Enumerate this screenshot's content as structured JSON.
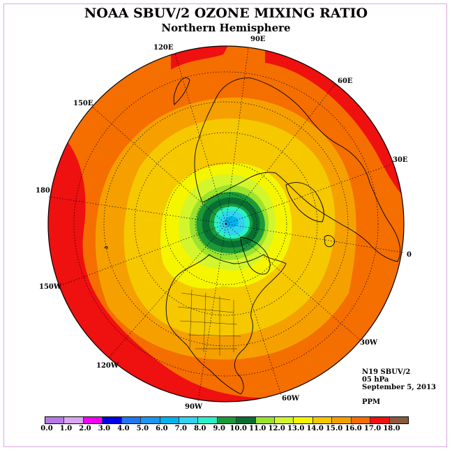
{
  "title": "NOAA SBUV/2 OZONE MIXING RATIO",
  "subtitle": "Northern Hemisphere",
  "longitude_labels": [
    "120E",
    "90E",
    "60E",
    "150E",
    "30E",
    "180",
    "0",
    "150W",
    "30W",
    "120W",
    "60W",
    "90W"
  ],
  "info": {
    "instrument": "N19 SBUV/2",
    "level": "05 hPa",
    "date": "September 5, 2013",
    "units": "PPM"
  },
  "colorbar": {
    "ticks": [
      "0.0",
      "1.0",
      "2.0",
      "3.0",
      "4.0",
      "5.0",
      "6.0",
      "7.0",
      "8.0",
      "9.0",
      "10.0",
      "11.0",
      "12.0",
      "13.0",
      "14.0",
      "15.0",
      "16.0",
      "17.0",
      "18.0"
    ],
    "colors": [
      "#b57ae8",
      "#d9a6f0",
      "#f000f0",
      "#0000e6",
      "#1e78f0",
      "#1e96f0",
      "#00b4f0",
      "#32d2f0",
      "#2aefc8",
      "#1b9a3a",
      "#0a6e32",
      "#9be32d",
      "#d2f52d",
      "#f5f500",
      "#f5c800",
      "#f5a000",
      "#f56e00",
      "#ef1010",
      "#8b5a3c"
    ]
  },
  "map": {
    "projection": "north-polar-stereographic",
    "field_colors": {
      "c17": "#ef1010",
      "c16": "#f56e00",
      "c15": "#f5a000",
      "c14": "#f5c800",
      "c13": "#f5f500",
      "c12": "#d2f52d",
      "c11": "#9be32d",
      "c10": "#0a6e32",
      "c9": "#1b9a3a",
      "c8": "#2aefc8",
      "c7": "#32d2f0",
      "c6": "#00b4f0"
    }
  }
}
